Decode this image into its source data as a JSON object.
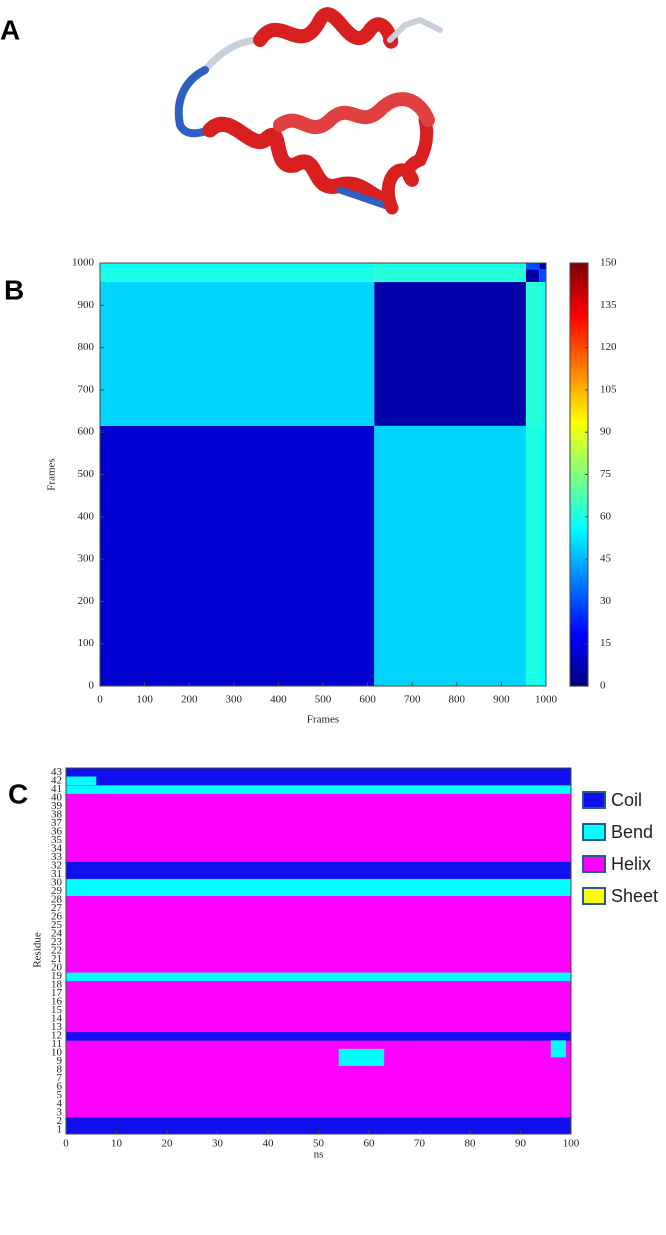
{
  "panel_labels": [
    "A",
    "B",
    "C"
  ],
  "chart_data": [
    {
      "type": "heatmap",
      "x_label": "Frames",
      "y_label": "Frames",
      "x_edges": [
        0,
        615,
        955,
        985,
        1000
      ],
      "y_edges": [
        0,
        615,
        955,
        985,
        1000
      ],
      "values": [
        [
          12,
          50,
          60,
          58
        ],
        [
          50,
          6,
          62,
          60
        ],
        [
          60,
          62,
          5,
          30
        ],
        [
          58,
          60,
          30,
          3
        ]
      ],
      "xlim": [
        0,
        1000
      ],
      "ylim": [
        0,
        1000
      ],
      "xticks": [
        0,
        100,
        200,
        300,
        400,
        500,
        600,
        700,
        800,
        900,
        1000
      ],
      "yticks": [
        0,
        100,
        200,
        300,
        400,
        500,
        600,
        700,
        800,
        900,
        1000
      ],
      "zlim": [
        0,
        150
      ],
      "zticks": [
        0,
        15,
        30,
        45,
        60,
        75,
        90,
        105,
        120,
        135,
        150
      ],
      "colormap": "jet"
    },
    {
      "type": "state-map",
      "x_label": "ns",
      "y_label": "Residue",
      "xlim": [
        0,
        100
      ],
      "xticks": [
        0,
        10,
        20,
        30,
        40,
        50,
        60,
        70,
        80,
        90,
        100
      ],
      "residues": [
        1,
        2,
        3,
        4,
        5,
        6,
        7,
        8,
        9,
        10,
        11,
        12,
        13,
        14,
        15,
        16,
        17,
        18,
        19,
        20,
        21,
        22,
        23,
        24,
        25,
        26,
        27,
        28,
        29,
        30,
        31,
        32,
        33,
        34,
        35,
        36,
        37,
        38,
        39,
        40,
        41,
        42,
        43
      ],
      "states": [
        "Coil",
        "Coil",
        "Helix",
        "Helix",
        "Helix",
        "Helix",
        "Helix",
        "Helix",
        "Helix",
        "Helix",
        "Helix",
        "Coil",
        "Helix",
        "Helix",
        "Helix",
        "Helix",
        "Helix",
        "Helix",
        "Bend",
        "Helix",
        "Helix",
        "Helix",
        "Helix",
        "Helix",
        "Helix",
        "Helix",
        "Helix",
        "Helix",
        "Bend",
        "Bend",
        "Coil",
        "Coil",
        "Helix",
        "Helix",
        "Helix",
        "Helix",
        "Helix",
        "Helix",
        "Helix",
        "Helix",
        "Bend",
        "Coil",
        "Coil"
      ],
      "segments": [
        {
          "residue": 9,
          "start": 54,
          "end": 63,
          "state": "Bend"
        },
        {
          "residue": 10,
          "start": 54,
          "end": 63,
          "state": "Bend"
        },
        {
          "residue": 10,
          "start": 96,
          "end": 99,
          "state": "Bend"
        },
        {
          "residue": 11,
          "start": 96,
          "end": 99,
          "state": "Bend"
        },
        {
          "residue": 42,
          "start": 0,
          "end": 6,
          "state": "Bend"
        }
      ],
      "legend": [
        {
          "name": "Coil",
          "color": "#1010ee"
        },
        {
          "name": "Bend",
          "color": "#00ffff"
        },
        {
          "name": "Helix",
          "color": "#ff00ff"
        },
        {
          "name": "Sheet",
          "color": "#ffff00"
        }
      ]
    }
  ]
}
